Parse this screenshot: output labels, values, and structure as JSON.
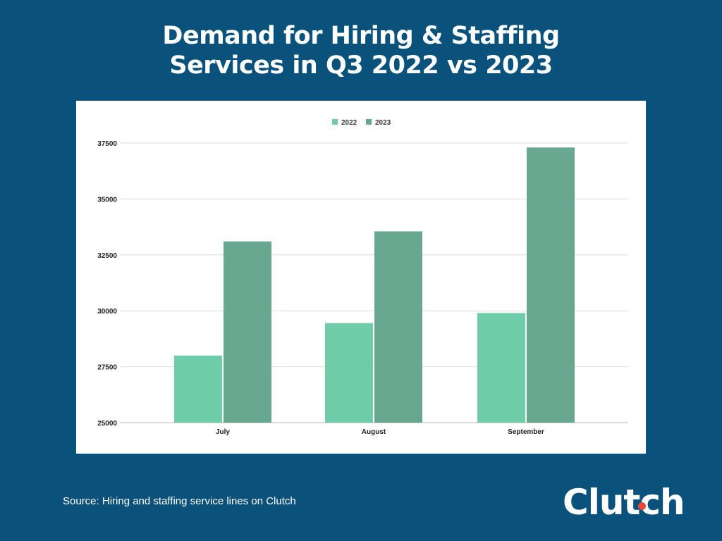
{
  "title_line1": "Demand for Hiring & Staffing",
  "title_line2": "Services in Q3 2022 vs 2023",
  "source": "Source: Hiring and staffing service lines on Clutch",
  "logo": "Clutch",
  "chart_data": {
    "type": "bar",
    "title": "Demand for Hiring & Staffing Services in Q3 2022 vs 2023",
    "categories": [
      "July",
      "August",
      "September"
    ],
    "series": [
      {
        "name": "2022",
        "color": "#6ecca9",
        "values": [
          28000,
          29450,
          29900
        ]
      },
      {
        "name": "2023",
        "color": "#68a890",
        "values": [
          33100,
          33550,
          37300
        ]
      }
    ],
    "yticks": [
      "25000",
      "27500",
      "30000",
      "32500",
      "35000",
      "37500"
    ],
    "ylim": [
      25000,
      37500
    ],
    "grid": true,
    "legend": "top"
  }
}
